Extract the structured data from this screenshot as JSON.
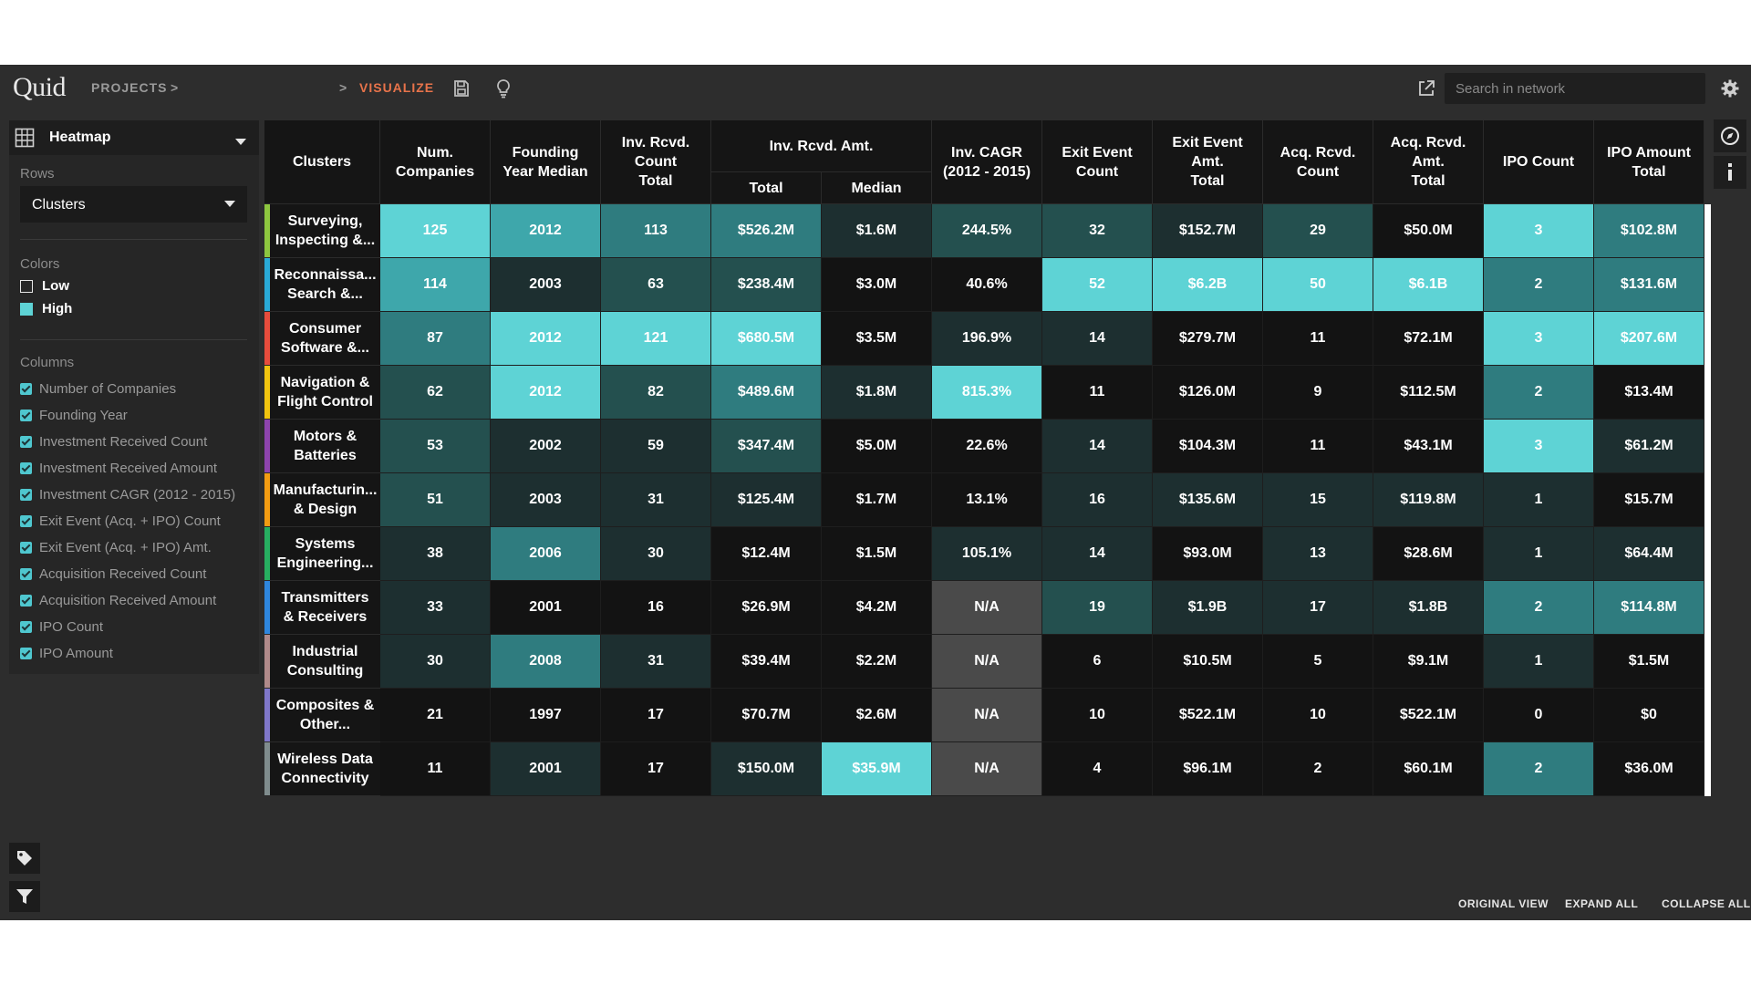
{
  "app": {
    "logo_text": "Quid"
  },
  "nav": {
    "projects_label": "PROJECTS",
    "sep1": ">",
    "sep2": ">",
    "visualize_label": "VISUALIZE"
  },
  "search": {
    "placeholder": "Search in network"
  },
  "panel": {
    "title": "Heatmap",
    "rows_label": "Rows",
    "rows_value": "Clusters",
    "colors_label": "Colors",
    "low_label": "Low",
    "high_label": "High",
    "columns_label": "Columns",
    "columns": [
      "Number of Companies",
      "Founding Year",
      "Investment Received Count",
      "Investment Received Amount",
      "Investment CAGR (2012 - 2015)",
      "Exit Event (Acq. + IPO) Count",
      "Exit Event (Acq. + IPO) Amt.",
      "Acquisition Received Count",
      "Acquisition Received Amount",
      "IPO Count",
      "IPO Amount"
    ]
  },
  "colors": {
    "accent": "#e8734a",
    "high": "#5ed3d5",
    "mid_high": "#3ea7ab",
    "mid": "#2f7c7f",
    "mid_low": "#24504f",
    "low": "#1d2f30",
    "lowest": "#131313",
    "na": "#4a4a4a"
  },
  "table": {
    "header_clusters": "Clusters",
    "headers": [
      "Num.\nCompanies",
      "Founding\nYear Median",
      "Inv. Rcvd.\nCount\nTotal",
      "Inv. CAGR\n(2012 - 2015)",
      "Exit Event\nCount",
      "Exit Event\nAmt.\nTotal",
      "Acq. Rcvd.\nCount",
      "Acq. Rcvd.\nAmt.\nTotal",
      "IPO Count",
      "IPO Amount\nTotal"
    ],
    "group_header": "Inv. Rcvd. Amt.",
    "sub_total": "Total",
    "sub_median": "Median",
    "rows": [
      {
        "label": "Surveying,\nInspecting &...",
        "bar": "#8dc63f",
        "values": [
          "125",
          "2012",
          "113",
          "$526.2M",
          "$1.6M",
          "244.5%",
          "32",
          "$152.7M",
          "29",
          "$50.0M",
          "3",
          "$102.8M"
        ],
        "levels": [
          5,
          4,
          3,
          3,
          1,
          2,
          2,
          1,
          2,
          0,
          5,
          3
        ]
      },
      {
        "label": "Reconnaissa...\nSearch &...",
        "bar": "#29a9d6",
        "values": [
          "114",
          "2003",
          "63",
          "$238.4M",
          "$3.0M",
          "40.6%",
          "52",
          "$6.2B",
          "50",
          "$6.1B",
          "2",
          "$131.6M"
        ],
        "levels": [
          4,
          1,
          2,
          2,
          0,
          0,
          5,
          5,
          5,
          5,
          3,
          3
        ]
      },
      {
        "label": "Consumer\nSoftware &...",
        "bar": "#e74c3c",
        "values": [
          "87",
          "2012",
          "121",
          "$680.5M",
          "$3.5M",
          "196.9%",
          "14",
          "$279.7M",
          "11",
          "$72.1M",
          "3",
          "$207.6M"
        ],
        "levels": [
          3,
          5,
          5,
          5,
          0,
          1,
          1,
          0,
          0,
          0,
          5,
          5
        ]
      },
      {
        "label": "Navigation &\nFlight Control",
        "bar": "#f1c40f",
        "values": [
          "62",
          "2012",
          "82",
          "$489.6M",
          "$1.8M",
          "815.3%",
          "11",
          "$126.0M",
          "9",
          "$112.5M",
          "2",
          "$13.4M"
        ],
        "levels": [
          2,
          5,
          2,
          3,
          1,
          5,
          0,
          0,
          0,
          0,
          3,
          0
        ]
      },
      {
        "label": "Motors &\nBatteries",
        "bar": "#8e44ad",
        "values": [
          "53",
          "2002",
          "59",
          "$347.4M",
          "$5.0M",
          "22.6%",
          "14",
          "$104.3M",
          "11",
          "$43.1M",
          "3",
          "$61.2M"
        ],
        "levels": [
          2,
          1,
          1,
          2,
          0,
          0,
          1,
          0,
          0,
          0,
          5,
          1
        ]
      },
      {
        "label": "Manufacturin...\n& Design",
        "bar": "#f39c12",
        "values": [
          "51",
          "2003",
          "31",
          "$125.4M",
          "$1.7M",
          "13.1%",
          "16",
          "$135.6M",
          "15",
          "$119.8M",
          "1",
          "$15.7M"
        ],
        "levels": [
          2,
          1,
          1,
          1,
          0,
          0,
          1,
          1,
          1,
          1,
          1,
          0
        ]
      },
      {
        "label": "Systems\nEngineering...",
        "bar": "#27ae60",
        "values": [
          "38",
          "2006",
          "30",
          "$12.4M",
          "$1.5M",
          "105.1%",
          "14",
          "$93.0M",
          "13",
          "$28.6M",
          "1",
          "$64.4M"
        ],
        "levels": [
          1,
          3,
          1,
          0,
          0,
          1,
          1,
          0,
          1,
          0,
          1,
          1
        ]
      },
      {
        "label": "Transmitters\n& Receivers",
        "bar": "#2e86de",
        "values": [
          "33",
          "2001",
          "16",
          "$26.9M",
          "$4.2M",
          "N/A",
          "19",
          "$1.9B",
          "17",
          "$1.8B",
          "2",
          "$114.8M"
        ],
        "levels": [
          1,
          0,
          0,
          0,
          0,
          -1,
          2,
          1,
          1,
          1,
          3,
          3
        ]
      },
      {
        "label": "Industrial\nConsulting",
        "bar": "#b08a8a",
        "values": [
          "30",
          "2008",
          "31",
          "$39.4M",
          "$2.2M",
          "N/A",
          "6",
          "$10.5M",
          "5",
          "$9.1M",
          "1",
          "$1.5M"
        ],
        "levels": [
          1,
          3,
          1,
          0,
          0,
          -1,
          0,
          0,
          0,
          0,
          1,
          0
        ]
      },
      {
        "label": "Composites &\nOther...",
        "bar": "#7f77c9",
        "values": [
          "21",
          "1997",
          "17",
          "$70.7M",
          "$2.6M",
          "N/A",
          "10",
          "$522.1M",
          "10",
          "$522.1M",
          "0",
          "$0"
        ],
        "levels": [
          0,
          0,
          0,
          0,
          0,
          -1,
          0,
          0,
          0,
          0,
          0,
          0
        ]
      },
      {
        "label": "Wireless Data\nConnectivity",
        "bar": "#7f8c8d",
        "values": [
          "11",
          "2001",
          "17",
          "$150.0M",
          "$35.9M",
          "N/A",
          "4",
          "$96.1M",
          "2",
          "$60.1M",
          "2",
          "$36.0M"
        ],
        "levels": [
          0,
          1,
          0,
          1,
          5,
          -1,
          0,
          0,
          0,
          0,
          3,
          0
        ]
      }
    ]
  },
  "footer": {
    "original_view": "ORIGINAL VIEW",
    "expand_all": "EXPAND ALL",
    "collapse_all": "COLLAPSE ALL"
  }
}
